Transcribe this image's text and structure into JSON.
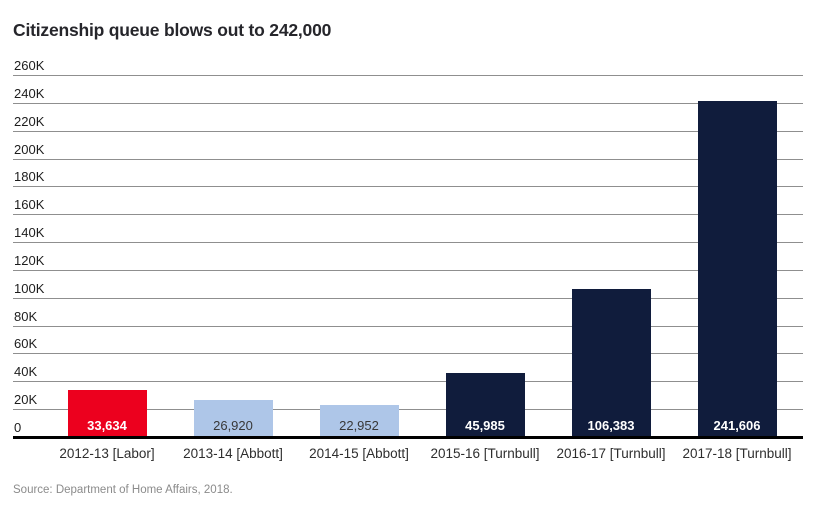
{
  "chart_data": {
    "type": "bar",
    "title": "Citizenship queue blows out to 242,000",
    "source": "Source: Department of Home Affairs, 2018.",
    "categories": [
      "2012-13 [Labor]",
      "2013-14 [Abbott]",
      "2014-15 [Abbott]",
      "2015-16 [Turnbull]",
      "2016-17 [Turnbull]",
      "2017-18 [Turnbull]"
    ],
    "values": [
      33634,
      26920,
      22952,
      45985,
      106383,
      241606
    ],
    "value_labels": [
      "33,634",
      "26,920",
      "22,952",
      "45,985",
      "106,383",
      "241,606"
    ],
    "bar_colors": [
      "#ec001e",
      "#aec6e8",
      "#aec6e8",
      "#101c3c",
      "#101c3c",
      "#101c3c"
    ],
    "value_label_colors": [
      "#ffffff",
      "#383838",
      "#383838",
      "#ffffff",
      "#ffffff",
      "#ffffff"
    ],
    "y_axis": {
      "tick_values": [
        260000,
        240000,
        220000,
        200000,
        180000,
        160000,
        140000,
        120000,
        100000,
        80000,
        60000,
        40000,
        20000,
        0
      ],
      "tick_labels": [
        "260K",
        "240K",
        "220K",
        "200K",
        "180K",
        "160K",
        "140K",
        "120K",
        "100K",
        "80K",
        "60K",
        "40K",
        "20K",
        "0"
      ]
    },
    "ylim": [
      0,
      260000
    ],
    "grid": true,
    "legend": false,
    "colors": {
      "labor_bar": "#ec001e",
      "abbott_bar": "#aec6e8",
      "turnbull_bar": "#101c3c",
      "gridline": "#8f8f8f",
      "axis": "#000000",
      "title_text": "#26262b",
      "source_text": "#8b8b8b"
    }
  }
}
